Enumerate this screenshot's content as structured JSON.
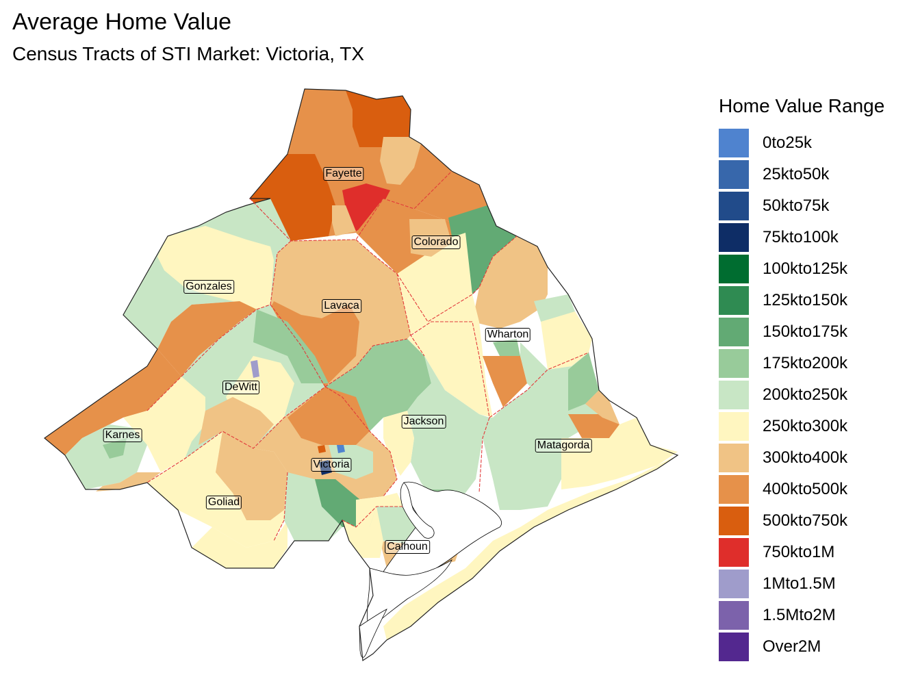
{
  "title": "Average Home Value",
  "subtitle": "Census Tracts of STI Market: Victoria, TX",
  "legend": {
    "title": "Home Value Range",
    "items": [
      {
        "label": "0to25k",
        "color": "#4f83cf"
      },
      {
        "label": "25kto50k",
        "color": "#3767ab"
      },
      {
        "label": "50kto75k",
        "color": "#214b8a"
      },
      {
        "label": "75kto100k",
        "color": "#0e2d66"
      },
      {
        "label": "100kto125k",
        "color": "#006d30"
      },
      {
        "label": "125kto150k",
        "color": "#2f8b52"
      },
      {
        "label": "150kto175k",
        "color": "#62aa74"
      },
      {
        "label": "175kto200k",
        "color": "#98cb9a"
      },
      {
        "label": "200kto250k",
        "color": "#c8e6c5"
      },
      {
        "label": "250kto300k",
        "color": "#fff6c0"
      },
      {
        "label": "300kto400k",
        "color": "#f0c385"
      },
      {
        "label": "400kto500k",
        "color": "#e6914a"
      },
      {
        "label": "500kto750k",
        "color": "#d95e0f"
      },
      {
        "label": "750kto1M",
        "color": "#df2e2b"
      },
      {
        "label": "1Mto1.5M",
        "color": "#9f9ccb"
      },
      {
        "label": "1.5Mto2M",
        "color": "#7c62ab"
      },
      {
        "label": "Over2M",
        "color": "#53288f"
      }
    ]
  },
  "counties": [
    {
      "name": "Fayette"
    },
    {
      "name": "Colorado"
    },
    {
      "name": "Gonzales"
    },
    {
      "name": "Lavaca"
    },
    {
      "name": "Wharton"
    },
    {
      "name": "DeWitt"
    },
    {
      "name": "Jackson"
    },
    {
      "name": "Karnes"
    },
    {
      "name": "Matagorda"
    },
    {
      "name": "Victoria"
    },
    {
      "name": "Goliad"
    },
    {
      "name": "Calhoun"
    }
  ]
}
